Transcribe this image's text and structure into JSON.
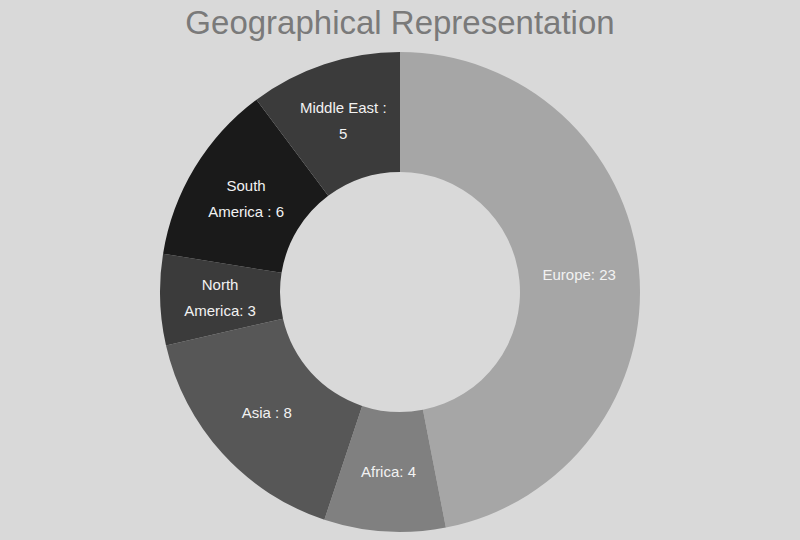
{
  "chart_data": {
    "type": "pie",
    "title": "Geographical Representation",
    "values": [
      23,
      4,
      8,
      3,
      6,
      5
    ],
    "value_labels": [
      "Europe: 23",
      "Africa: 4",
      "Asia : 8",
      "North America: 3",
      "South America : 6",
      "Middle East : 5"
    ],
    "colors": [
      "#a6a6a6",
      "#808080",
      "#575757",
      "#3b3b3b",
      "#1a1a1a",
      "#3b3b3b"
    ],
    "data_labels": true
  }
}
